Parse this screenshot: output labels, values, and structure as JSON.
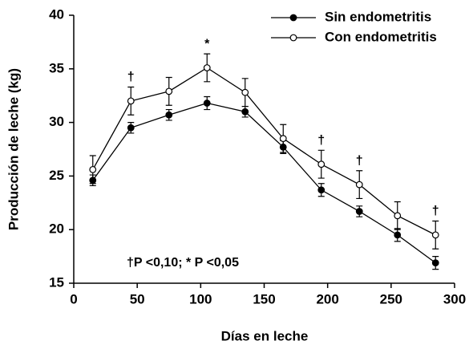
{
  "chart_data": {
    "type": "line",
    "xlabel": "Días en leche",
    "ylabel": "Producción de leche (kg)",
    "x": [
      15,
      45,
      75,
      105,
      135,
      165,
      195,
      225,
      255,
      285
    ],
    "series": [
      {
        "name": "Sin endometritis",
        "color": "#000000",
        "marker": "filled",
        "values": [
          24.6,
          29.5,
          30.7,
          31.8,
          31.0,
          27.7,
          23.7,
          21.7,
          19.5,
          16.9
        ],
        "errors": [
          0.5,
          0.5,
          0.5,
          0.6,
          0.5,
          0.6,
          0.6,
          0.5,
          0.6,
          0.6
        ]
      },
      {
        "name": "Con endometritis",
        "color": "#000000",
        "marker": "open",
        "values": [
          25.6,
          32.0,
          32.9,
          35.1,
          32.8,
          28.5,
          26.1,
          24.2,
          21.3,
          19.5
        ],
        "errors": [
          1.3,
          1.3,
          1.3,
          1.3,
          1.3,
          1.3,
          1.3,
          1.3,
          1.3,
          1.3
        ]
      }
    ],
    "significance": [
      null,
      "†",
      null,
      "*",
      null,
      null,
      "†",
      "†",
      null,
      "†"
    ],
    "note": "†P  <0,10; * P  <0,05",
    "xlim": [
      0,
      300
    ],
    "xticks": [
      0,
      50,
      100,
      150,
      200,
      250,
      300
    ],
    "ylim": [
      15,
      40
    ],
    "yticks": [
      15,
      20,
      25,
      30,
      35,
      40
    ],
    "legend": "upper right",
    "grid": false
  }
}
